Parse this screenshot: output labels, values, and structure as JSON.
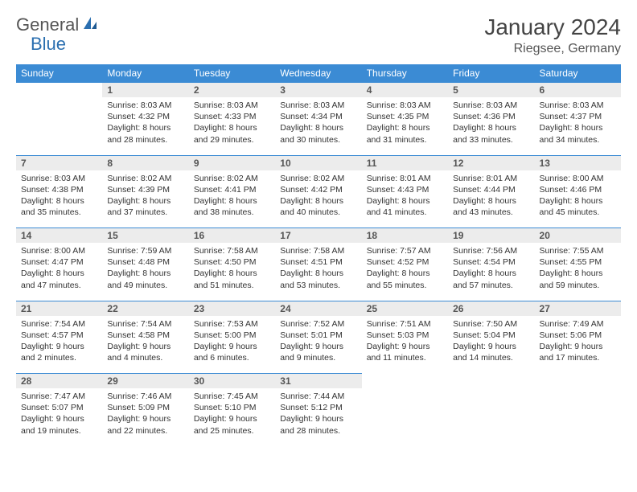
{
  "brand": {
    "part1": "General",
    "part2": "Blue"
  },
  "title": "January 2024",
  "location": "Riegsee, Germany",
  "colors": {
    "header_bg": "#3b8bd4",
    "header_text": "#ffffff",
    "daynum_bg": "#ececec",
    "daynum_border": "#3b8bd4",
    "body_text": "#333333",
    "brand_gray": "#555555",
    "brand_blue": "#2b6fb0"
  },
  "layout": {
    "columns": 7,
    "rows": 5,
    "first_day_offset": 1
  },
  "weekdays": [
    "Sunday",
    "Monday",
    "Tuesday",
    "Wednesday",
    "Thursday",
    "Friday",
    "Saturday"
  ],
  "days": [
    {
      "n": 1,
      "sunrise": "8:03 AM",
      "sunset": "4:32 PM",
      "daylight": "8 hours and 28 minutes."
    },
    {
      "n": 2,
      "sunrise": "8:03 AM",
      "sunset": "4:33 PM",
      "daylight": "8 hours and 29 minutes."
    },
    {
      "n": 3,
      "sunrise": "8:03 AM",
      "sunset": "4:34 PM",
      "daylight": "8 hours and 30 minutes."
    },
    {
      "n": 4,
      "sunrise": "8:03 AM",
      "sunset": "4:35 PM",
      "daylight": "8 hours and 31 minutes."
    },
    {
      "n": 5,
      "sunrise": "8:03 AM",
      "sunset": "4:36 PM",
      "daylight": "8 hours and 33 minutes."
    },
    {
      "n": 6,
      "sunrise": "8:03 AM",
      "sunset": "4:37 PM",
      "daylight": "8 hours and 34 minutes."
    },
    {
      "n": 7,
      "sunrise": "8:03 AM",
      "sunset": "4:38 PM",
      "daylight": "8 hours and 35 minutes."
    },
    {
      "n": 8,
      "sunrise": "8:02 AM",
      "sunset": "4:39 PM",
      "daylight": "8 hours and 37 minutes."
    },
    {
      "n": 9,
      "sunrise": "8:02 AM",
      "sunset": "4:41 PM",
      "daylight": "8 hours and 38 minutes."
    },
    {
      "n": 10,
      "sunrise": "8:02 AM",
      "sunset": "4:42 PM",
      "daylight": "8 hours and 40 minutes."
    },
    {
      "n": 11,
      "sunrise": "8:01 AM",
      "sunset": "4:43 PM",
      "daylight": "8 hours and 41 minutes."
    },
    {
      "n": 12,
      "sunrise": "8:01 AM",
      "sunset": "4:44 PM",
      "daylight": "8 hours and 43 minutes."
    },
    {
      "n": 13,
      "sunrise": "8:00 AM",
      "sunset": "4:46 PM",
      "daylight": "8 hours and 45 minutes."
    },
    {
      "n": 14,
      "sunrise": "8:00 AM",
      "sunset": "4:47 PM",
      "daylight": "8 hours and 47 minutes."
    },
    {
      "n": 15,
      "sunrise": "7:59 AM",
      "sunset": "4:48 PM",
      "daylight": "8 hours and 49 minutes."
    },
    {
      "n": 16,
      "sunrise": "7:58 AM",
      "sunset": "4:50 PM",
      "daylight": "8 hours and 51 minutes."
    },
    {
      "n": 17,
      "sunrise": "7:58 AM",
      "sunset": "4:51 PM",
      "daylight": "8 hours and 53 minutes."
    },
    {
      "n": 18,
      "sunrise": "7:57 AM",
      "sunset": "4:52 PM",
      "daylight": "8 hours and 55 minutes."
    },
    {
      "n": 19,
      "sunrise": "7:56 AM",
      "sunset": "4:54 PM",
      "daylight": "8 hours and 57 minutes."
    },
    {
      "n": 20,
      "sunrise": "7:55 AM",
      "sunset": "4:55 PM",
      "daylight": "8 hours and 59 minutes."
    },
    {
      "n": 21,
      "sunrise": "7:54 AM",
      "sunset": "4:57 PM",
      "daylight": "9 hours and 2 minutes."
    },
    {
      "n": 22,
      "sunrise": "7:54 AM",
      "sunset": "4:58 PM",
      "daylight": "9 hours and 4 minutes."
    },
    {
      "n": 23,
      "sunrise": "7:53 AM",
      "sunset": "5:00 PM",
      "daylight": "9 hours and 6 minutes."
    },
    {
      "n": 24,
      "sunrise": "7:52 AM",
      "sunset": "5:01 PM",
      "daylight": "9 hours and 9 minutes."
    },
    {
      "n": 25,
      "sunrise": "7:51 AM",
      "sunset": "5:03 PM",
      "daylight": "9 hours and 11 minutes."
    },
    {
      "n": 26,
      "sunrise": "7:50 AM",
      "sunset": "5:04 PM",
      "daylight": "9 hours and 14 minutes."
    },
    {
      "n": 27,
      "sunrise": "7:49 AM",
      "sunset": "5:06 PM",
      "daylight": "9 hours and 17 minutes."
    },
    {
      "n": 28,
      "sunrise": "7:47 AM",
      "sunset": "5:07 PM",
      "daylight": "9 hours and 19 minutes."
    },
    {
      "n": 29,
      "sunrise": "7:46 AM",
      "sunset": "5:09 PM",
      "daylight": "9 hours and 22 minutes."
    },
    {
      "n": 30,
      "sunrise": "7:45 AM",
      "sunset": "5:10 PM",
      "daylight": "9 hours and 25 minutes."
    },
    {
      "n": 31,
      "sunrise": "7:44 AM",
      "sunset": "5:12 PM",
      "daylight": "9 hours and 28 minutes."
    }
  ]
}
